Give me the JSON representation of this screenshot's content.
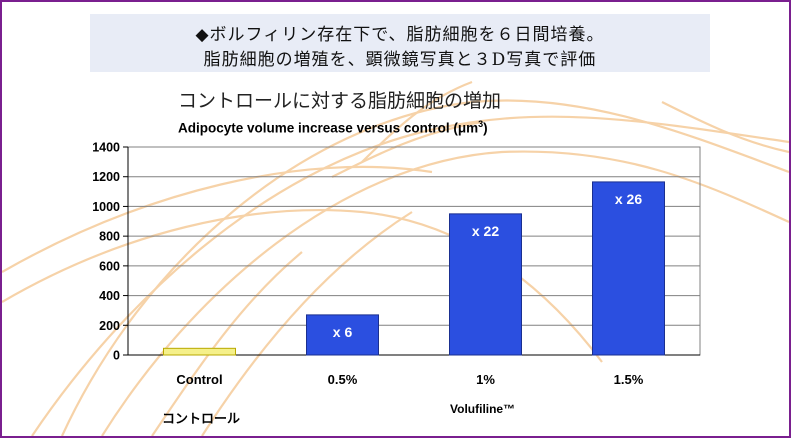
{
  "banner": {
    "line1": "◆ボルフィリン存在下で、脂肪細胞を６日間培養。",
    "line2": "脂肪細胞の増殖を、顕微鏡写真と３D写真で評価"
  },
  "colors": {
    "border": "#7a1f8f",
    "banner_bg": "#e8ecf6",
    "bar": "#2b4fe0",
    "control_bar": "#f5f08a",
    "deco_curves": "#f3c48c"
  },
  "chart_data": {
    "type": "bar",
    "title": "コントロールに対する脂肪細胞の増加",
    "subtitle": "Adipocyte volume increase versus control (μm",
    "subtitle_sup": "3",
    "subtitle_end": ")",
    "categories": [
      "Control",
      "0.5%",
      "1%",
      "1.5%"
    ],
    "values": [
      45,
      270,
      950,
      1165
    ],
    "data_labels": [
      "",
      "x 6",
      "x 22",
      "x 26"
    ],
    "ylim": [
      0,
      1400
    ],
    "yticks": [
      0,
      200,
      400,
      600,
      800,
      1000,
      1200,
      1400
    ],
    "grid": true,
    "xlabel_left": "コントロール",
    "xlabel": "Volufiline™"
  }
}
